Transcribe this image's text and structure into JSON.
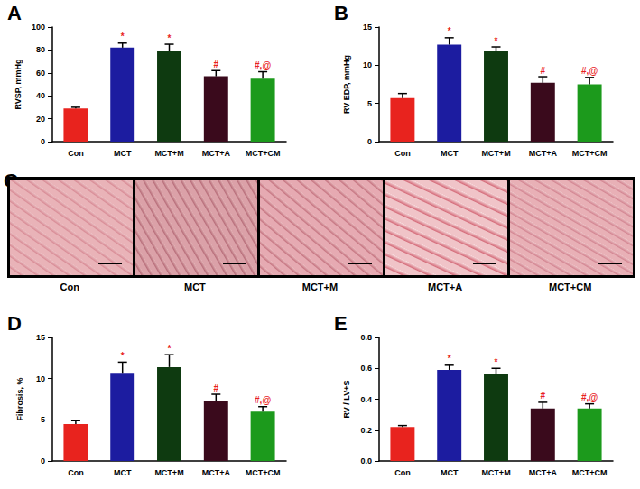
{
  "chart_data": [
    {
      "type": "bar",
      "panel_label": "A",
      "y_label": "RVSP, mmHg",
      "categories": [
        "Con",
        "MCT",
        "MCT+M",
        "MCT+A",
        "MCT+CM"
      ],
      "values": [
        29,
        82,
        79,
        57,
        55
      ],
      "errors": [
        1,
        4,
        6,
        5,
        6
      ],
      "annotations": [
        null,
        "*",
        "*",
        "#",
        "#,@"
      ],
      "colors": [
        "#e8231e",
        "#1c1ca0",
        "#0e3a10",
        "#3a0a1c",
        "#1c9a1c"
      ],
      "ylim": [
        0,
        100
      ],
      "yticks": [
        0,
        20,
        40,
        60,
        80,
        100
      ],
      "grid": false
    },
    {
      "type": "bar",
      "panel_label": "B",
      "y_label": "RV EDP, mmHg",
      "categories": [
        "Con",
        "MCT",
        "MCT+M",
        "MCT+A",
        "MCT+CM"
      ],
      "values": [
        5.7,
        12.7,
        11.8,
        7.7,
        7.5
      ],
      "errors": [
        0.6,
        0.9,
        0.6,
        0.8,
        0.9
      ],
      "annotations": [
        null,
        "*",
        "*",
        "#",
        "#,@"
      ],
      "colors": [
        "#e8231e",
        "#1c1ca0",
        "#0e3a10",
        "#3a0a1c",
        "#1c9a1c"
      ],
      "ylim": [
        0,
        15
      ],
      "yticks": [
        0,
        5,
        10,
        15
      ],
      "grid": false
    },
    {
      "type": "bar",
      "panel_label": "D",
      "y_label": "Fibrosis, %",
      "categories": [
        "Con",
        "MCT",
        "MCT+M",
        "MCT+A",
        "MCT+CM"
      ],
      "values": [
        4.5,
        10.7,
        11.4,
        7.3,
        6.0
      ],
      "errors": [
        0.4,
        1.3,
        1.5,
        0.8,
        0.6
      ],
      "annotations": [
        null,
        "*",
        "*",
        "#",
        "#,@"
      ],
      "colors": [
        "#e8231e",
        "#1c1ca0",
        "#0e3a10",
        "#3a0a1c",
        "#1c9a1c"
      ],
      "ylim": [
        0,
        15
      ],
      "yticks": [
        0,
        5,
        10,
        15
      ],
      "grid": false
    },
    {
      "type": "bar",
      "panel_label": "E",
      "y_label": "RV / LV+S",
      "categories": [
        "Con",
        "MCT",
        "MCT+M",
        "MCT+A",
        "MCT+CM"
      ],
      "values": [
        0.22,
        0.59,
        0.56,
        0.34,
        0.34
      ],
      "errors": [
        0.01,
        0.03,
        0.04,
        0.04,
        0.03
      ],
      "annotations": [
        null,
        "*",
        "*",
        "#",
        "#,@"
      ],
      "colors": [
        "#e8231e",
        "#1c1ca0",
        "#0e3a10",
        "#3a0a1c",
        "#1c9a1c"
      ],
      "ylim": [
        0,
        0.8
      ],
      "yticks": [
        {
          "value": 0,
          "label": "0.0"
        },
        0.2,
        0.4,
        0.6,
        0.8
      ],
      "grid": false
    }
  ],
  "image_panel": {
    "panel_label": "C",
    "captions": [
      "Con",
      "MCT",
      "MCT+M",
      "MCT+A",
      "MCT+CM"
    ]
  }
}
